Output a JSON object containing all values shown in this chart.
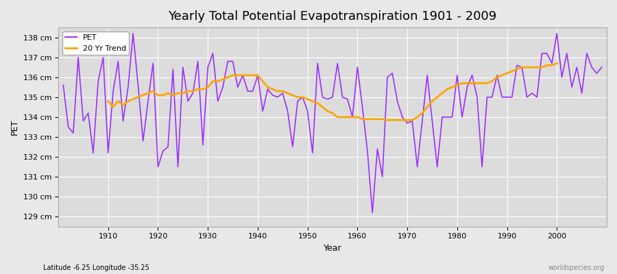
{
  "title": "Yearly Total Potential Evapotranspiration 1901 - 2009",
  "xlabel": "Year",
  "ylabel": "PET",
  "subtitle_left": "Latitude -6.25 Longitude -35.25",
  "subtitle_right": "worldspecies.org",
  "pet_color": "#9B30FF",
  "trend_color": "#FFA500",
  "background_color": "#E8E8E8",
  "plot_bg_color": "#DCDCDC",
  "grid_color": "#FFFFFF",
  "ylim": [
    128.5,
    138.5
  ],
  "ytick_labels": [
    "129 cm",
    "130 cm",
    "131 cm",
    "132 cm",
    "133 cm",
    "134 cm",
    "135 cm",
    "136 cm",
    "137 cm",
    "138 cm"
  ],
  "ytick_values": [
    129,
    130,
    131,
    132,
    133,
    134,
    135,
    136,
    137,
    138
  ],
  "xlim": [
    1900,
    2010
  ],
  "years": [
    1901,
    1902,
    1903,
    1904,
    1905,
    1906,
    1907,
    1908,
    1909,
    1910,
    1911,
    1912,
    1913,
    1914,
    1915,
    1916,
    1917,
    1918,
    1919,
    1920,
    1921,
    1922,
    1923,
    1924,
    1925,
    1926,
    1927,
    1928,
    1929,
    1930,
    1931,
    1932,
    1933,
    1934,
    1935,
    1936,
    1937,
    1938,
    1939,
    1940,
    1941,
    1942,
    1943,
    1944,
    1945,
    1946,
    1947,
    1948,
    1949,
    1950,
    1951,
    1952,
    1953,
    1954,
    1955,
    1956,
    1957,
    1958,
    1959,
    1960,
    1961,
    1962,
    1963,
    1964,
    1965,
    1966,
    1967,
    1968,
    1969,
    1970,
    1971,
    1972,
    1973,
    1974,
    1975,
    1976,
    1977,
    1978,
    1979,
    1980,
    1981,
    1982,
    1983,
    1984,
    1985,
    1986,
    1987,
    1988,
    1989,
    1990,
    1991,
    1992,
    1993,
    1994,
    1995,
    1996,
    1997,
    1998,
    1999,
    2000,
    2001,
    2002,
    2003,
    2004,
    2005,
    2006,
    2007,
    2008,
    2009
  ],
  "pet_values": [
    135.6,
    133.5,
    133.2,
    137.0,
    133.8,
    134.2,
    132.2,
    135.8,
    137.0,
    132.2,
    135.3,
    136.8,
    133.8,
    135.5,
    138.2,
    135.6,
    132.8,
    134.8,
    136.7,
    131.5,
    132.3,
    132.5,
    136.4,
    131.5,
    136.5,
    134.8,
    135.2,
    136.8,
    132.6,
    136.5,
    137.2,
    134.8,
    135.5,
    136.8,
    136.8,
    135.5,
    136.1,
    135.3,
    135.3,
    136.1,
    134.3,
    135.4,
    135.1,
    135.0,
    135.2,
    134.3,
    132.5,
    134.8,
    135.0,
    134.3,
    132.2,
    136.7,
    135.0,
    134.9,
    135.0,
    136.7,
    135.0,
    134.9,
    134.0,
    136.5,
    134.5,
    132.3,
    129.2,
    132.4,
    131.0,
    136.0,
    136.2,
    134.8,
    134.0,
    133.7,
    133.8,
    131.5,
    133.8,
    136.1,
    133.8,
    131.5,
    134.0,
    134.0,
    134.0,
    136.1,
    134.0,
    135.5,
    136.1,
    135.0,
    131.5,
    135.0,
    135.0,
    136.1,
    135.0,
    135.0,
    135.0,
    136.6,
    136.5,
    135.0,
    135.2,
    135.0,
    137.2,
    137.2,
    136.7,
    138.2,
    136.0,
    137.2,
    135.5,
    136.5,
    135.2,
    137.2,
    136.5,
    136.2,
    136.5
  ],
  "trend_values": [
    null,
    null,
    null,
    null,
    null,
    null,
    null,
    null,
    null,
    134.8,
    134.5,
    134.8,
    134.6,
    134.8,
    134.9,
    135.0,
    135.1,
    135.2,
    135.3,
    135.1,
    135.1,
    135.2,
    135.1,
    135.2,
    135.2,
    135.3,
    135.3,
    135.4,
    135.4,
    135.5,
    135.8,
    135.8,
    135.9,
    136.0,
    136.1,
    136.1,
    136.1,
    136.1,
    136.1,
    136.1,
    135.8,
    135.5,
    135.4,
    135.3,
    135.3,
    135.2,
    135.1,
    135.0,
    135.0,
    134.9,
    134.8,
    134.7,
    134.5,
    134.3,
    134.2,
    134.0,
    134.0,
    134.0,
    134.0,
    134.0,
    133.9,
    133.9,
    133.9,
    133.9,
    133.9,
    133.85,
    133.85,
    133.85,
    133.85,
    133.85,
    133.85,
    134.0,
    134.2,
    134.5,
    134.8,
    135.0,
    135.2,
    135.4,
    135.5,
    135.6,
    135.7,
    135.7,
    135.7,
    135.7,
    135.7,
    135.7,
    135.8,
    136.0,
    136.1,
    136.2,
    136.3,
    136.4,
    136.5,
    136.5,
    136.5,
    136.5,
    136.5,
    136.6,
    136.6,
    136.7,
    null,
    null,
    null,
    null,
    null,
    null,
    null,
    null
  ]
}
